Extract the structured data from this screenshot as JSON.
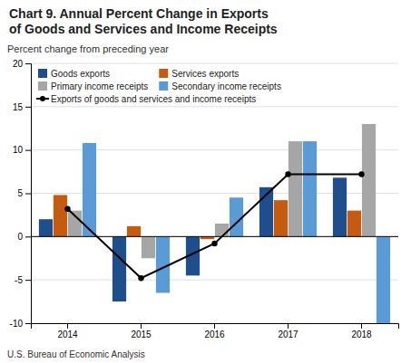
{
  "chart_data": {
    "type": "bar",
    "title": "Chart 9. Annual Percent Change in Exports\nof Goods and Services and Income Receipts",
    "y_label": "Percent change from preceding year",
    "annotations": [
      "U.S. Bureau of Economic Analysis"
    ],
    "categories": [
      2014,
      2015,
      2016,
      2017,
      2018
    ],
    "series": [
      {
        "name": "Goods exports",
        "type": "bar",
        "color": "#1f4e8c",
        "values": [
          2.0,
          -7.5,
          -4.5,
          5.7,
          6.8
        ]
      },
      {
        "name": "Services exports",
        "type": "bar",
        "color": "#c55a11",
        "values": [
          4.8,
          1.2,
          -0.3,
          4.2,
          3.0
        ]
      },
      {
        "name": "Primary income receipts",
        "type": "bar",
        "color": "#a6a6a6",
        "values": [
          3.0,
          -2.5,
          1.5,
          11.0,
          13.0
        ]
      },
      {
        "name": "Secondary income receipts",
        "type": "bar",
        "color": "#5b9bd5",
        "values": [
          10.8,
          -6.5,
          4.5,
          11.0,
          -10.0
        ]
      },
      {
        "name": "Exports of goods and services and income receipts",
        "type": "line",
        "color": "#000000",
        "marker": "circle",
        "values": [
          3.2,
          -4.8,
          -0.8,
          7.2,
          7.2
        ]
      }
    ],
    "ylim": [
      -10,
      20
    ],
    "yticks": [
      -10,
      -5,
      0,
      5,
      10,
      15,
      20
    ],
    "grid": true,
    "legend": "upper left"
  }
}
